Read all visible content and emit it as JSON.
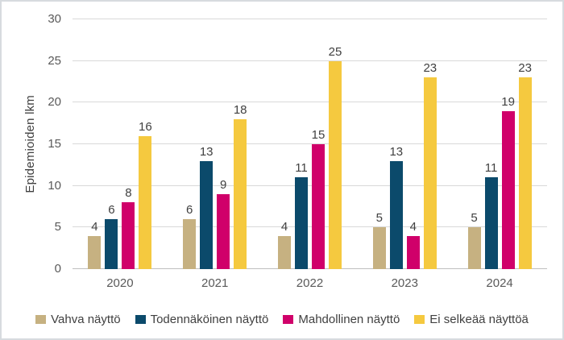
{
  "chart_data": {
    "type": "bar",
    "title": "",
    "ylabel": "Epidemioiden lkm",
    "xlabel": "",
    "categories": [
      "2020",
      "2021",
      "2022",
      "2023",
      "2024"
    ],
    "series": [
      {
        "name": "Vahva näyttö",
        "color": "#c6b181",
        "values": [
          4,
          6,
          4,
          5,
          5
        ]
      },
      {
        "name": "Todennäköinen näyttö",
        "color": "#0b4a6b",
        "values": [
          6,
          13,
          11,
          13,
          11
        ]
      },
      {
        "name": "Mahdollinen näyttö",
        "color": "#d0006a",
        "values": [
          8,
          9,
          15,
          4,
          19
        ]
      },
      {
        "name": "Ei selkeää näyttöä",
        "color": "#f5c93f",
        "values": [
          16,
          18,
          25,
          23,
          23
        ]
      }
    ],
    "ylim": [
      0,
      30
    ],
    "yticks": [
      0,
      5,
      10,
      15,
      20,
      25,
      30
    ],
    "grid": true,
    "legend_position": "bottom",
    "colors": {
      "gridline": "#d9d9d9",
      "axis_line": "#bfbfbf",
      "tick_text": "#595959",
      "label_text": "#404040",
      "frame_border": "#d7dbdf"
    }
  }
}
